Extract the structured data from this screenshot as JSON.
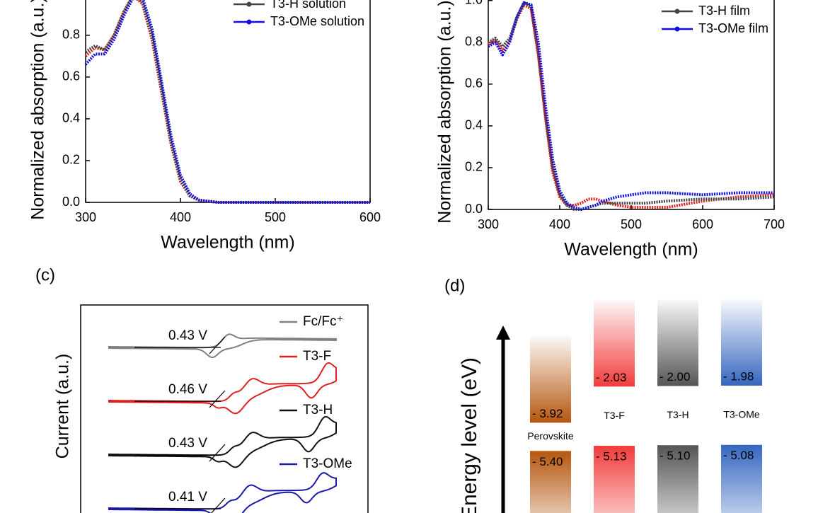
{
  "chart_data": [
    {
      "type": "line",
      "xlabel": "Wavelength (nm)",
      "ylabel": "Normalized absorption (a.u.)",
      "x": [
        300,
        310,
        320,
        330,
        340,
        350,
        360,
        370,
        380,
        390,
        400,
        410,
        420,
        440,
        480,
        520,
        560,
        600
      ],
      "series": [
        {
          "color": "#e02020",
          "values": [
            0.7,
            0.74,
            0.73,
            0.8,
            0.91,
            0.99,
            0.95,
            0.78,
            0.53,
            0.28,
            0.1,
            0.03,
            0.01,
            0,
            0,
            0,
            0,
            0
          ]
        },
        {
          "name": "T3-H solution",
          "color": "#444444",
          "values": [
            0.72,
            0.75,
            0.73,
            0.8,
            0.91,
            0.99,
            0.96,
            0.8,
            0.55,
            0.29,
            0.11,
            0.03,
            0.01,
            0,
            0,
            0,
            0,
            0
          ]
        },
        {
          "name": "T3-OMe solution",
          "color": "#1010e0",
          "values": [
            0.66,
            0.71,
            0.71,
            0.78,
            0.89,
            0.98,
            0.98,
            0.83,
            0.58,
            0.32,
            0.13,
            0.04,
            0.01,
            0,
            0,
            0,
            0,
            0
          ]
        }
      ],
      "xlim": [
        300,
        600
      ],
      "xticks": [
        300,
        400,
        500,
        600
      ],
      "ylim": [
        0,
        1.05
      ],
      "yticks": [
        {
          "value": 0,
          "label": "0.0"
        },
        0.2,
        0.4,
        0.6,
        0.8
      ],
      "legend": "upper right"
    },
    {
      "type": "line",
      "xlabel": "Wavelength (nm)",
      "ylabel": "Normalized absorption (a.u.)",
      "x": [
        300,
        310,
        320,
        330,
        340,
        350,
        360,
        370,
        380,
        390,
        400,
        410,
        420,
        430,
        440,
        450,
        460,
        480,
        500,
        520,
        550,
        600,
        650,
        700
      ],
      "series": [
        {
          "color": "#e02020",
          "values": [
            0.79,
            0.81,
            0.76,
            0.81,
            0.91,
            0.98,
            0.96,
            0.74,
            0.44,
            0.18,
            0.06,
            0.02,
            0.02,
            0.03,
            0.05,
            0.05,
            0.04,
            0.02,
            0.01,
            0.01,
            0.01,
            0.04,
            0.06,
            0.07
          ]
        },
        {
          "name": "T3-H film",
          "color": "#444444",
          "values": [
            0.8,
            0.82,
            0.78,
            0.82,
            0.92,
            0.99,
            0.97,
            0.75,
            0.45,
            0.2,
            0.07,
            0.02,
            0,
            0,
            0.01,
            0.02,
            0.03,
            0.03,
            0.03,
            0.03,
            0.04,
            0.05,
            0.05,
            0.06
          ]
        },
        {
          "name": "T3-OMe film",
          "color": "#1010e0",
          "values": [
            0.78,
            0.8,
            0.74,
            0.8,
            0.92,
            0.99,
            0.98,
            0.8,
            0.5,
            0.24,
            0.09,
            0.03,
            0.01,
            0,
            0.01,
            0.02,
            0.04,
            0.06,
            0.07,
            0.08,
            0.08,
            0.07,
            0.08,
            0.08
          ]
        }
      ],
      "xlim": [
        300,
        700
      ],
      "xticks": [
        300,
        400,
        500,
        600,
        700
      ],
      "ylim": [
        0,
        1.05
      ],
      "yticks": [
        {
          "value": 0,
          "label": "0.0"
        },
        0.2,
        0.4,
        0.6,
        0.8,
        {
          "value": 1,
          "label": "1.0"
        }
      ],
      "legend": "upper right"
    },
    {
      "type": "cv",
      "panel_label": "(c)",
      "ylabel": "Current (a.u.)",
      "series": [
        {
          "name": "Fc/Fc⁺",
          "color": "#808080",
          "annotation": "0.43 V"
        },
        {
          "name": "T3-F",
          "color": "#e02020",
          "annotation": "0.46 V"
        },
        {
          "name": "T3-H",
          "color": "#111111",
          "annotation": "0.43 V"
        },
        {
          "name": "T3-OMe",
          "color": "#1a1aaa",
          "annotation": "0.41 V"
        }
      ]
    },
    {
      "type": "levels",
      "panel_label": "(d)",
      "ylabel": "Energy level (eV)",
      "categories": [
        "Perovskite",
        "T3-F",
        "T3-H",
        "T3-OMe"
      ],
      "colors": [
        "#b5560f",
        "#f23b3b",
        "#555555",
        "#3566c0"
      ],
      "label_colors": [
        "#000000",
        "#e0262a",
        "#000000",
        "#4472c4"
      ],
      "levels": [
        {
          "values": [
            -3.92,
            -2.03,
            -2.0,
            -1.98
          ],
          "value_labels": [
            "- 3.92",
            "- 2.03",
            "- 2.00",
            "- 1.98"
          ]
        },
        {
          "values": [
            -5.4,
            -5.13,
            -5.1,
            -5.08
          ],
          "value_labels": [
            "- 5.40",
            "- 5.13",
            "- 5.10",
            "- 5.08"
          ]
        }
      ]
    }
  ]
}
